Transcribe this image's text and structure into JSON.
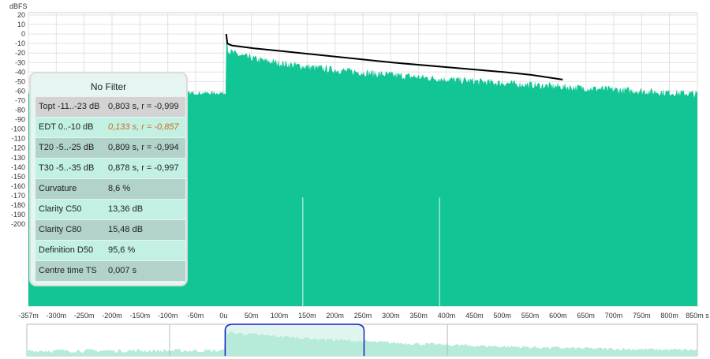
{
  "y_axis": {
    "unit": "dBFS",
    "ticks": [
      "20",
      "10",
      "0",
      "-10",
      "-20",
      "-30",
      "-40",
      "-50",
      "-60",
      "-70",
      "-80",
      "-90",
      "-100",
      "-110",
      "-120",
      "-130",
      "-140",
      "-150",
      "-160",
      "-170",
      "-180",
      "-190",
      "-200"
    ]
  },
  "x_axis": {
    "ticks": [
      "-357m",
      "-300m",
      "-250m",
      "-200m",
      "-150m",
      "-100m",
      "-50m",
      "0u",
      "50m",
      "100m",
      "150m",
      "200m",
      "250m",
      "300m",
      "350m",
      "400m",
      "450m",
      "500m",
      "550m",
      "600m",
      "650m",
      "700m",
      "750m",
      "800m",
      "850m s"
    ]
  },
  "colors": {
    "fill": "#12c594",
    "overview_fill": "#b6ead9",
    "decay_line": "#000000",
    "window_line": "#1a1acc",
    "grid": "#e2e2e2",
    "row_dark": "#b2d3ca",
    "row_light": "#c2f0e2",
    "row_grey": "#d3d3d3",
    "warning": "#d2691e"
  },
  "panel": {
    "title": "No Filter",
    "rows": [
      {
        "label": "Topt -11..-23 dB",
        "value": "0,803 s,  r = -0,999",
        "style": "grey"
      },
      {
        "label": "EDT  0..-10 dB",
        "value": "0,133 s,  r = -0,857",
        "style": "light",
        "warning": true
      },
      {
        "label": "T20 -5..-25 dB",
        "value": "0,809 s,  r = -0,994",
        "style": "dark"
      },
      {
        "label": "T30 -5..-35 dB",
        "value": "0,878 s,  r = -0,997",
        "style": "light"
      },
      {
        "label": "Curvature",
        "value": "8,6 %",
        "style": "dark"
      },
      {
        "label": "Clarity C50",
        "value": "13,36 dB",
        "style": "light"
      },
      {
        "label": "Clarity C80",
        "value": "15,48 dB",
        "style": "dark"
      },
      {
        "label": "Definition D50",
        "value": "95,6 %",
        "style": "light"
      },
      {
        "label": "Centre time TS",
        "value": "0,007 s",
        "style": "dark"
      }
    ]
  },
  "signal": {
    "noise_floor_db": -62,
    "onset_s": 0,
    "peak_db": 0,
    "decay_start_db": -14,
    "decay_end_db": -63,
    "decay_end_s": 0.85
  },
  "schroeder_curve": {
    "start_s": 0,
    "end_s": 0.607,
    "points": [
      [
        0,
        0
      ],
      [
        0.002,
        -10
      ],
      [
        0.01,
        -12
      ],
      [
        0.05,
        -15
      ],
      [
        0.1,
        -18
      ],
      [
        0.2,
        -24
      ],
      [
        0.3,
        -30
      ],
      [
        0.4,
        -35
      ],
      [
        0.5,
        -40
      ],
      [
        0.55,
        -43
      ],
      [
        0.607,
        -48
      ]
    ]
  },
  "overview": {
    "window_start_s": 0,
    "window_end_s": 0.25
  }
}
